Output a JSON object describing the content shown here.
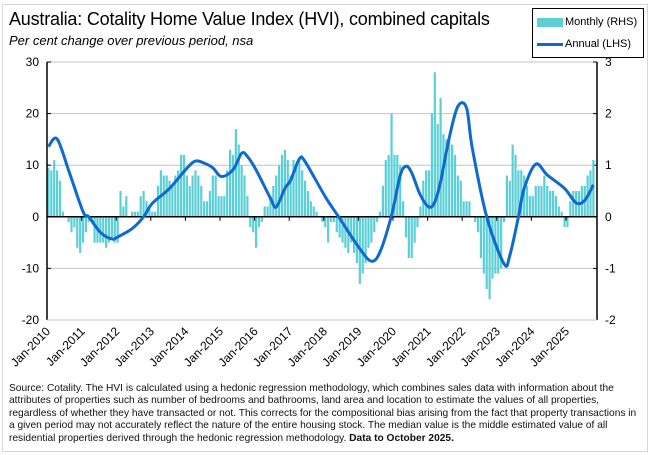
{
  "chart_data": {
    "type": "bar+line",
    "title": "Australia: Cotality Home Value Index (HVI), combined capitals",
    "subtitle": "Per cent change over previous period, nsa",
    "left_axis": {
      "ylim": [
        -20,
        30
      ],
      "ticks": [
        "30",
        "20",
        "10",
        "0",
        "-10",
        "-20"
      ]
    },
    "right_axis": {
      "ylim": [
        -2,
        3
      ],
      "ticks": [
        "3",
        "2",
        "1",
        "0",
        "-1",
        "-2"
      ]
    },
    "x_tick_labels": [
      "Jan-2010",
      "Jan-2011",
      "Jan-2012",
      "Jan-2013",
      "Jan-2014",
      "Jan-2015",
      "Jan-2016",
      "Jan-2017",
      "Jan-2018",
      "Jan-2019",
      "Jan-2020",
      "Jan-2021",
      "Jan-2022",
      "Jan-2023",
      "Jan-2024",
      "Jan-2025"
    ],
    "grid": true,
    "legend": {
      "placement": "top-right",
      "entries": [
        "Monthly (RHS)",
        "Annual (LHS)"
      ]
    },
    "colors": {
      "monthly": "#5ccfd6",
      "annual": "#0f6ad0"
    },
    "monthly_rhs": [
      {
        "year": 2010,
        "values": [
          0.95,
          0.9,
          1.1,
          0.9,
          0.7,
          0.1,
          0,
          -0.1,
          -0.3,
          -0.2,
          -0.6,
          -0.7
        ]
      },
      {
        "year": 2011,
        "values": [
          -0.5,
          -0.3,
          -0.1,
          -0.1,
          -0.5,
          -0.5,
          -0.5,
          -0.5,
          -0.6,
          -0.5,
          -0.4,
          -0.5
        ]
      },
      {
        "year": 2012,
        "values": [
          -0.5,
          0.5,
          0.2,
          0.4,
          0,
          0.1,
          0.1,
          0.1,
          0.4,
          0.5,
          0.3,
          0.2
        ]
      },
      {
        "year": 2013,
        "values": [
          0.1,
          0.1,
          0.6,
          0.9,
          0.8,
          0.8,
          0.7,
          0.6,
          0.8,
          0.9,
          1.2,
          1.2
        ]
      },
      {
        "year": 2014,
        "values": [
          0.8,
          0.6,
          0.8,
          0.9,
          0.8,
          0.6,
          0.3,
          0.3,
          0.5,
          0.8,
          0.8,
          0.4
        ]
      },
      {
        "year": 2015,
        "values": [
          0.4,
          0.4,
          0.9,
          1.3,
          1.2,
          1.7,
          1.4,
          1.0,
          0.8,
          0.4,
          -0.2,
          -0.3
        ]
      },
      {
        "year": 2016,
        "values": [
          -0.6,
          -0.2,
          -0.1,
          0.2,
          0.2,
          0.4,
          0.6,
          0.8,
          1.0,
          1.2,
          1.3,
          1.1
        ]
      },
      {
        "year": 2017,
        "values": [
          0.8,
          1.1,
          1.0,
          1.1,
          0.9,
          0.7,
          0.5,
          0.3,
          0.2,
          0.1,
          0,
          -0.1
        ]
      },
      {
        "year": 2018,
        "values": [
          -0.2,
          -0.5,
          -0.1,
          -0.1,
          -0.3,
          -0.4,
          -0.5,
          -0.6,
          -0.7,
          -0.5,
          -0.7,
          -0.9
        ]
      },
      {
        "year": 2019,
        "values": [
          -1.3,
          -1.1,
          -0.9,
          -0.6,
          -0.5,
          -0.3,
          -0.1,
          0.1,
          0.6,
          1.1,
          1.2,
          2.0
        ]
      },
      {
        "year": 2020,
        "values": [
          1.2,
          1.2,
          1.0,
          0.3,
          -0.4,
          -0.8,
          -0.8,
          -0.5,
          -0.2,
          0.2,
          0.7,
          0.9
        ]
      },
      {
        "year": 2021,
        "values": [
          0.9,
          2.0,
          2.8,
          1.8,
          2.3,
          1.6,
          1.5,
          1.5,
          1.4,
          1.2,
          0.8,
          0.7
        ]
      },
      {
        "year": 2022,
        "values": [
          0.3,
          0.3,
          0.3,
          0,
          -0.1,
          -0.3,
          -0.8,
          -1.1,
          -1.4,
          -1.6,
          -1.2,
          -1.1
        ]
      },
      {
        "year": 2023,
        "values": [
          -1.1,
          -1.0,
          -0.1,
          0.8,
          0.7,
          1.4,
          1.2,
          0.9,
          0.9,
          0.8,
          0.6,
          0.4
        ]
      },
      {
        "year": 2024,
        "values": [
          0.4,
          0.6,
          0.6,
          0.6,
          0.8,
          0.6,
          0.5,
          0.5,
          0.4,
          0.2,
          0.1,
          -0.2
        ]
      },
      {
        "year": 2025,
        "values": [
          -0.2,
          0.3,
          0.5,
          0.5,
          0.5,
          0.6,
          0.6,
          0.8,
          0.9,
          1.1
        ]
      }
    ],
    "annual_lhs": [
      [
        "2010-01",
        13.6
      ],
      [
        "2010-04",
        15.1
      ],
      [
        "2010-08",
        9.0
      ],
      [
        "2011-01",
        1.0
      ],
      [
        "2011-03",
        0
      ],
      [
        "2011-07",
        -3.0
      ],
      [
        "2011-11",
        -4.3
      ],
      [
        "2012-01",
        -3.9
      ],
      [
        "2012-06",
        -2.3
      ],
      [
        "2012-10",
        0
      ],
      [
        "2013-01",
        2.6
      ],
      [
        "2013-07",
        5.5
      ],
      [
        "2014-01",
        9.4
      ],
      [
        "2014-04",
        10.8
      ],
      [
        "2014-07",
        10.4
      ],
      [
        "2014-10",
        9.5
      ],
      [
        "2015-01",
        7.8
      ],
      [
        "2015-05",
        9.1
      ],
      [
        "2015-08",
        12.3
      ],
      [
        "2015-10",
        11.7
      ],
      [
        "2016-01",
        9.1
      ],
      [
        "2016-06",
        3.6
      ],
      [
        "2016-08",
        1.9
      ],
      [
        "2016-11",
        5.5
      ],
      [
        "2017-01",
        7.1
      ],
      [
        "2017-04",
        11.2
      ],
      [
        "2017-06",
        10.7
      ],
      [
        "2018-01",
        3.9
      ],
      [
        "2018-06",
        -0.3
      ],
      [
        "2019-01",
        -6.2
      ],
      [
        "2019-05",
        -8.6
      ],
      [
        "2019-08",
        -6.8
      ],
      [
        "2019-12",
        0.3
      ],
      [
        "2020-03",
        8.0
      ],
      [
        "2020-05",
        9.8
      ],
      [
        "2020-07",
        8.5
      ],
      [
        "2020-10",
        4.2
      ],
      [
        "2021-01",
        1.9
      ],
      [
        "2021-03",
        2.9
      ],
      [
        "2021-05",
        6.8
      ],
      [
        "2021-08",
        15.3
      ],
      [
        "2021-11",
        21.4
      ],
      [
        "2022-02",
        21.1
      ],
      [
        "2022-04",
        13.3
      ],
      [
        "2022-09",
        0
      ],
      [
        "2023-03",
        -9.1
      ],
      [
        "2023-05",
        -7.5
      ],
      [
        "2023-08",
        0
      ],
      [
        "2023-10",
        5.5
      ],
      [
        "2024-02",
        10.2
      ],
      [
        "2024-06",
        8.1
      ],
      [
        "2024-12",
        5.5
      ],
      [
        "2025-04",
        2.7
      ],
      [
        "2025-07",
        3.2
      ],
      [
        "2025-10",
        6.2
      ]
    ]
  },
  "footnote": {
    "text": "Source: Cotality. The HVI is calculated using a hedonic regression methodology, which combines sales data with information about the attributes of properties such as number of bedrooms and bathrooms, land area and location to estimate the values of all properties, regardless of whether they have transacted or not.  This corrects for the compositional bias arising from the fact that property transactions in a given period may not accurately reflect the nature of the entire housing stock.  The median value is the middle estimated value of all residential properties derived through the hedonic regression methodology. ",
    "bold": "Data to October 2025."
  }
}
